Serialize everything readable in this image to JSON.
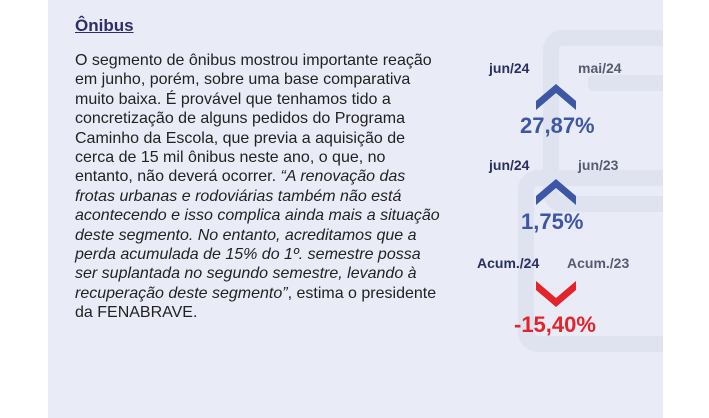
{
  "section": {
    "title": "Ônibus",
    "paragraph_normal_1": "O segmento de ônibus mostrou importante reação em junho, porém, sobre uma base comparativa muito baixa. É provável que tenhamos tido a concretização de alguns pedidos do Programa Caminho da Escola, que previa a aquisição de cerca de 15 mil ônibus neste ano, o que, no entanto, não deverá ocorrer. ",
    "paragraph_quote": "“A renovação das frotas urbanas e rodoviárias também não está acontecendo e isso complica ainda mais a situação deste segmento. No entanto, acreditamos que a perda acumulada de 15% do 1º. semestre possa ser suplantada no segundo semestre, levando à recuperação deste segmento”",
    "paragraph_normal_2": ", estima o presidente da FENABRAVE."
  },
  "comparisons": [
    {
      "current": "jun/24",
      "previous": "mai/24",
      "value": "27,87%",
      "direction": "up",
      "arrow_icon": "chevron-up-icon",
      "color": "#3d56a6"
    },
    {
      "current": "jun/24",
      "previous": "jun/23",
      "value": "1,75%",
      "direction": "up",
      "arrow_icon": "chevron-up-icon",
      "color": "#3d56a6"
    },
    {
      "current": "Acum./24",
      "previous": "Acum./23",
      "value": "-15,40%",
      "direction": "down",
      "arrow_icon": "chevron-down-icon",
      "color": "#e3242b"
    }
  ]
}
